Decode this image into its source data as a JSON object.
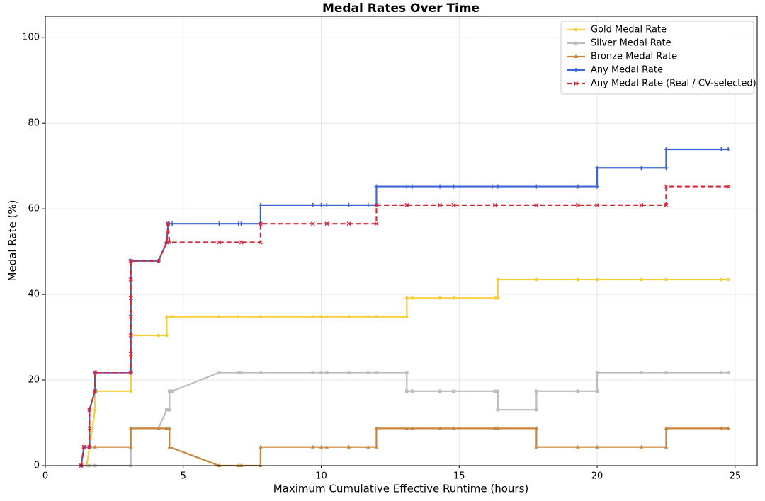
{
  "chart_data": {
    "type": "line",
    "title": "Medal Rates Over Time",
    "x_label": "Maximum Cumulative Effective Runtime (hours)",
    "y_label": "Medal Rate (%)",
    "xlim": [
      0,
      25.8
    ],
    "ylim": [
      0,
      105
    ],
    "xticks": [
      0,
      5,
      10,
      15,
      20,
      25
    ],
    "yticks": [
      0,
      20,
      40,
      60,
      80,
      100
    ],
    "grid": true,
    "legend": "upper right",
    "series": [
      {
        "name": "Gold Medal Rate",
        "color": "#f7ce3a",
        "marker": "circle",
        "dash": false,
        "x": [
          1.5,
          1.6,
          1.8,
          1.8,
          3.1,
          3.1,
          4.1,
          4.4,
          4.4,
          4.6,
          6.3,
          7.0,
          7.8,
          9.7,
          10.0,
          10.2,
          11.0,
          11.7,
          12.0,
          13.1,
          13.1,
          13.3,
          14.3,
          14.8,
          16.3,
          16.4,
          16.4,
          17.8,
          19.3,
          20.0,
          21.6,
          22.5,
          24.5,
          24.75
        ],
        "values": [
          0,
          4.35,
          13.04,
          17.39,
          17.39,
          30.43,
          30.43,
          30.43,
          34.78,
          34.78,
          34.78,
          34.78,
          34.78,
          34.78,
          34.78,
          34.78,
          34.78,
          34.78,
          34.78,
          34.78,
          39.13,
          39.13,
          39.13,
          39.13,
          39.13,
          39.13,
          43.48,
          43.48,
          43.48,
          43.48,
          43.48,
          43.48,
          43.48,
          43.48
        ]
      },
      {
        "name": "Silver Medal Rate",
        "color": "#bdbdbd",
        "marker": "square",
        "dash": false,
        "x": [
          1.3,
          1.6,
          1.8,
          3.1,
          3.1,
          4.1,
          4.4,
          4.5,
          4.5,
          4.6,
          6.3,
          7.0,
          7.1,
          7.8,
          9.7,
          10.0,
          10.2,
          11.0,
          11.7,
          12.0,
          13.1,
          13.1,
          13.3,
          14.3,
          14.8,
          16.3,
          16.4,
          16.4,
          17.8,
          17.8,
          19.3,
          20.0,
          20.0,
          21.6,
          22.5,
          24.5,
          24.75
        ],
        "values": [
          0,
          0,
          0,
          0,
          8.7,
          8.7,
          13.04,
          13.04,
          17.39,
          17.39,
          21.74,
          21.74,
          21.74,
          21.74,
          21.74,
          21.74,
          21.74,
          21.74,
          21.74,
          21.74,
          21.74,
          17.39,
          17.39,
          17.39,
          17.39,
          17.39,
          17.39,
          13.04,
          13.04,
          17.39,
          17.39,
          17.39,
          21.74,
          21.74,
          21.74,
          21.74,
          21.74
        ]
      },
      {
        "name": "Bronze Medal Rate",
        "color": "#c8853c",
        "marker": "triangle",
        "dash": false,
        "x": [
          1.4,
          1.6,
          1.8,
          3.1,
          3.1,
          4.1,
          4.4,
          4.5,
          4.5,
          6.3,
          7.0,
          7.1,
          7.8,
          7.8,
          9.7,
          10.0,
          10.2,
          11.0,
          11.7,
          12.0,
          12.0,
          13.1,
          13.3,
          14.3,
          14.8,
          16.3,
          16.4,
          17.8,
          17.8,
          19.3,
          20.0,
          21.6,
          22.5,
          22.5,
          24.5,
          24.75
        ],
        "values": [
          4.35,
          4.35,
          4.35,
          4.35,
          8.7,
          8.7,
          8.7,
          8.7,
          4.35,
          0,
          0,
          0,
          0,
          4.35,
          4.35,
          4.35,
          4.35,
          4.35,
          4.35,
          4.35,
          8.7,
          8.7,
          8.7,
          8.7,
          8.7,
          8.7,
          8.7,
          8.7,
          4.35,
          4.35,
          4.35,
          4.35,
          4.35,
          8.7,
          8.7,
          8.7
        ]
      },
      {
        "name": "Any Medal Rate",
        "color": "#3f66d4",
        "marker": "plus",
        "dash": false,
        "x": [
          1.3,
          1.4,
          1.6,
          1.6,
          1.8,
          1.8,
          3.1,
          3.1,
          4.1,
          4.4,
          4.45,
          4.6,
          6.3,
          7.0,
          7.1,
          7.8,
          7.8,
          9.7,
          10.0,
          10.2,
          11.0,
          11.7,
          12.0,
          12.0,
          13.1,
          13.3,
          14.3,
          14.8,
          16.2,
          16.4,
          17.8,
          19.3,
          20.0,
          20.0,
          21.6,
          22.5,
          22.5,
          24.5,
          24.75
        ],
        "values": [
          0,
          4.35,
          4.35,
          13.04,
          17.39,
          21.74,
          21.74,
          47.83,
          47.83,
          52.17,
          56.52,
          56.52,
          56.52,
          56.52,
          56.52,
          56.52,
          60.87,
          60.87,
          60.87,
          60.87,
          60.87,
          60.87,
          60.87,
          65.22,
          65.22,
          65.22,
          65.22,
          65.22,
          65.22,
          65.22,
          65.22,
          65.22,
          65.22,
          69.57,
          69.57,
          69.57,
          73.91,
          73.91,
          73.91
        ]
      },
      {
        "name": "Any Medal Rate (Real / CV-selected)",
        "color": "#d62839",
        "marker": "x",
        "dash": true,
        "x": [
          1.3,
          1.4,
          1.6,
          1.6,
          1.6,
          1.8,
          1.8,
          3.1,
          3.1,
          3.1,
          3.1,
          3.1,
          3.1,
          3.1,
          4.1,
          4.4,
          4.45,
          4.5,
          6.3,
          7.1,
          7.8,
          7.8,
          9.7,
          10.2,
          11.0,
          12.0,
          12.0,
          13.1,
          14.3,
          14.8,
          16.3,
          17.8,
          19.3,
          20.0,
          21.6,
          22.5,
          22.5,
          24.75
        ],
        "values": [
          0,
          4.35,
          4.35,
          8.7,
          13.04,
          17.39,
          21.74,
          21.74,
          26.09,
          30.43,
          34.78,
          39.13,
          43.48,
          47.83,
          47.83,
          52.17,
          56.52,
          52.17,
          52.17,
          52.17,
          52.17,
          56.52,
          56.52,
          56.52,
          56.52,
          56.52,
          60.87,
          60.87,
          60.87,
          60.87,
          60.87,
          60.87,
          60.87,
          60.87,
          60.87,
          60.87,
          65.22,
          65.22
        ]
      }
    ]
  }
}
